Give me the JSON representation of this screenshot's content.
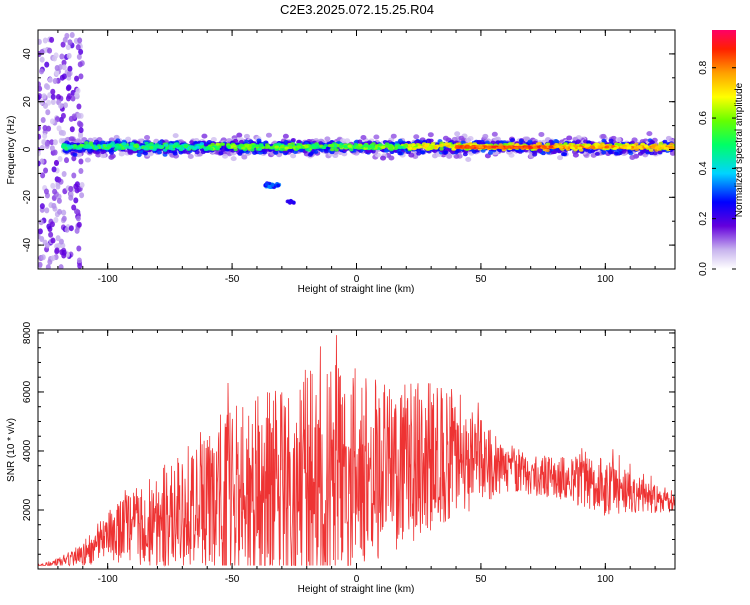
{
  "title": "C2E3.2025.072.15.25.R04",
  "chart_data": [
    {
      "type": "heatmap",
      "xlabel": "Height of straight line (km)",
      "ylabel": "Frequency (Hz)",
      "xlim": [
        -128,
        128
      ],
      "ylim": [
        -50,
        50
      ],
      "xticks": [
        -100,
        -50,
        0,
        50,
        100
      ],
      "yticks": [
        -40,
        -20,
        0,
        20,
        40
      ],
      "colorbar": {
        "label": "Normalized spectral amplitude",
        "range": [
          0,
          0.95
        ],
        "ticks": [
          "0.0",
          "0.2",
          "0.4",
          "0.6",
          "0.8"
        ]
      },
      "description_points": [
        {
          "x": -120,
          "y": 0,
          "amp": 0.3
        },
        {
          "x": -100,
          "y": 2,
          "amp": 0.5
        },
        {
          "x": -50,
          "y": 2,
          "amp": 0.6
        },
        {
          "x": 0,
          "y": 1,
          "amp": 0.7
        },
        {
          "x": 50,
          "y": 1,
          "amp": 0.9
        },
        {
          "x": 70,
          "y": 0,
          "amp": 0.95
        },
        {
          "x": 100,
          "y": 1,
          "amp": 0.8
        },
        {
          "x": 125,
          "y": 1,
          "amp": 0.75
        },
        {
          "x": -35,
          "y": -15,
          "amp": 0.35
        },
        {
          "x": -27,
          "y": -22,
          "amp": 0.3
        }
      ]
    },
    {
      "type": "line",
      "xlabel": "Height of straight line (km)",
      "ylabel": "SNR (10 * v/v)",
      "xlim": [
        -128,
        128
      ],
      "ylim": [
        0,
        8100
      ],
      "xticks": [
        -100,
        -50,
        0,
        50,
        100
      ],
      "yticks": [
        2000,
        4000,
        6000,
        8000
      ],
      "series": [
        {
          "color": "#ee3333",
          "envelope_x": [
            -128,
            -120,
            -110,
            -100,
            -90,
            -80,
            -70,
            -60,
            -50,
            -40,
            -30,
            -20,
            -10,
            0,
            10,
            20,
            30,
            40,
            50,
            60,
            70,
            80,
            90,
            100,
            110,
            120,
            128
          ],
          "envelope_mean": [
            100,
            200,
            500,
            1100,
            1400,
            1700,
            2000,
            2300,
            2600,
            2800,
            3000,
            3100,
            3200,
            3300,
            3400,
            3600,
            3800,
            3900,
            3600,
            3400,
            3200,
            3100,
            3000,
            2800,
            2600,
            2400,
            2300
          ],
          "envelope_amp": [
            50,
            150,
            400,
            900,
            1300,
            1700,
            2000,
            2600,
            3000,
            3200,
            3500,
            3800,
            3800,
            3500,
            3000,
            2800,
            2500,
            2200,
            1500,
            900,
            700,
            700,
            900,
            1000,
            700,
            500,
            400
          ]
        }
      ]
    }
  ]
}
